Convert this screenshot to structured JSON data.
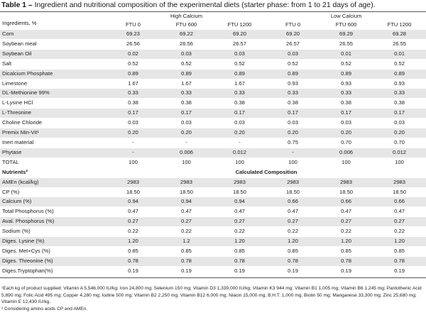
{
  "title": {
    "label": "Table 1 –",
    "text": "Ingredient and nutritional composition of the experimental diets (starter phase: from 1 to 21 days of age)."
  },
  "header": {
    "row_label": "Ingredients, %",
    "group_high": "High Calcium",
    "group_low": "Low Calcium",
    "columns": [
      "FTU 0",
      "FTU 600",
      "FTU 1200",
      "FTU 0",
      "FTU 600",
      "FTU 1200"
    ]
  },
  "ingredients": [
    {
      "label": "Corn",
      "values": [
        "69.23",
        "69.22",
        "69.20",
        "69.20",
        "69.29",
        "69.28"
      ]
    },
    {
      "label": "Soybean meal",
      "values": [
        "26.56",
        "26.56",
        "26.57",
        "26.57",
        "26.55",
        "26.55"
      ]
    },
    {
      "label": "Soybean Oil",
      "values": [
        "0.02",
        "0.03",
        "0.03",
        "0.03",
        "0.01",
        "0.01"
      ]
    },
    {
      "label": "Salt",
      "values": [
        "0.52",
        "0.52",
        "0.52",
        "0.52",
        "0.52",
        "0.52"
      ]
    },
    {
      "label": "Dicalcium Phosphate",
      "values": [
        "0.89",
        "0.89",
        "0.89",
        "0.89",
        "0.89",
        "0.89"
      ]
    },
    {
      "label": "Limestone",
      "values": [
        "1.67",
        "1.67",
        "1.67",
        "0.93",
        "0.93",
        "0.93"
      ]
    },
    {
      "label": "DL-Methionine 99%",
      "values": [
        "0.33",
        "0.33",
        "0.33",
        "0.33",
        "0.33",
        "0.33"
      ]
    },
    {
      "label": "L-Lysine HCl",
      "values": [
        "0.38",
        "0.38",
        "0.38",
        "0.38",
        "0.38",
        "0.38"
      ]
    },
    {
      "label": "L-Threonine",
      "values": [
        "0.17",
        "0.17",
        "0.17",
        "0.17",
        "0.17",
        "0.17"
      ]
    },
    {
      "label": "Choline Chloride",
      "values": [
        "0.03",
        "0.03",
        "0.03",
        "0.03",
        "0.03",
        "0.03"
      ]
    },
    {
      "label": "Premix Min-Vit¹",
      "values": [
        "0.20",
        "0.20",
        "0.20",
        "0.20",
        "0.20",
        "0.20"
      ]
    },
    {
      "label": "Inert material",
      "values": [
        "-",
        "-",
        "-",
        "0.75",
        "0.70",
        "0.70"
      ]
    },
    {
      "label": "Phytase",
      "values": [
        "-",
        "0.006",
        "0.012",
        "-",
        "0.006",
        "0.012"
      ]
    },
    {
      "label": "TOTAL",
      "values": [
        "100",
        "100",
        "100",
        "100",
        "100",
        "100"
      ]
    }
  ],
  "nutrients_header": {
    "label": "Nutrients²",
    "caption": "Calculated Composition"
  },
  "nutrients": [
    {
      "label": "AMEn (kcal/kg)",
      "values": [
        "2983",
        "2983",
        "2983",
        "2983",
        "2983",
        "2983"
      ]
    },
    {
      "label": "CP (%)",
      "values": [
        "18.50",
        "18.50",
        "18.50",
        "18.50",
        "18.50",
        "18.50"
      ]
    },
    {
      "label": "Calcium (%)",
      "values": [
        "0.94",
        "0.94",
        "0.94",
        "0.66",
        "0.66",
        "0.66"
      ]
    },
    {
      "label": "Total Phosphorus (%)",
      "values": [
        "0.47",
        "0.47",
        "0.47",
        "0.47",
        "0.47",
        "0.47"
      ]
    },
    {
      "label": "Aval. Phosphorus (%)",
      "values": [
        "0.27",
        "0.27",
        "0.27",
        "0.27",
        "0.27",
        "0.27"
      ]
    },
    {
      "label": "Sodium (%)",
      "values": [
        "0.22",
        "0.22",
        "0.22",
        "0.22",
        "0.22",
        "0.22"
      ]
    },
    {
      "label": "Diges. Lysine (%)",
      "values": [
        "1.20",
        "1.2",
        "1.20",
        "1.20",
        "1.20",
        "1.20"
      ]
    },
    {
      "label": "Diges. Met+Cys (%)",
      "values": [
        "0.85",
        "0.85",
        "0.85",
        "0.85",
        "0.85",
        "0.85"
      ]
    },
    {
      "label": "Diges. Threonine (%)",
      "values": [
        "0.78",
        "0.78",
        "0.78",
        "0.78",
        "0.78",
        "0.78"
      ]
    },
    {
      "label": "Diges.Tryptophan(%)",
      "values": [
        "0.19",
        "0.19",
        "0.19",
        "0.19",
        "0.19",
        "0.19"
      ]
    }
  ],
  "footnotes": [
    "¹Each kg of product supplied: Vitamin A 5,546,000 IU/kg; Iron 24,800 mg; Selenium 150 mg; Vitamin D3 1,339,000 IU/kg; Vitamin K3 944 mg; Vitamin B1 1,005 mg; Vitamin B6 1,245 mg; Pantothenic Acid 5,890 mg; Folic Acid 495 mg; Copper 4,280 mg; Iodine 500 mg; Vitamin B2 2,250 mg; Vitamin B12 6,000 mg; Niacin 15,000 mg; B.H.T. 1,000 mg; Biotin 50 mg; Manganese 33,300 mg; Zinc 25,680 mg; Vitamin E 12,430 IU/kg.",
    "² Considering amino acids CP and AMEn."
  ]
}
